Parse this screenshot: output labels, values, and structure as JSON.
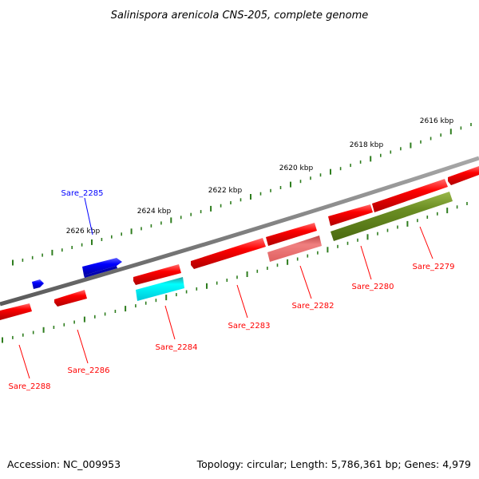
{
  "title": "Salinispora arenicola CNS-205, complete genome",
  "footer": {
    "accession": "Accession: NC_009953",
    "summary": "Topology: circular; Length: 5,786,361 bp; Genes: 4,979"
  },
  "scale_labels": [
    "2616 kbp",
    "2618 kbp",
    "2620 kbp",
    "2622 kbp",
    "2624 kbp",
    "2626 kbp"
  ],
  "colors": {
    "backbone": "#808080",
    "tick": "#2e7d1e",
    "cds_forward": "#ff0000",
    "cds_reverse": "#ff0000",
    "selected_cds": "#00ffff",
    "pseudo_cds": "#f08080",
    "rna": "#6b8e23",
    "highlight": "#0000ff"
  },
  "genes": [
    {
      "label": "Sare_2285",
      "color": "#0000ff",
      "label_color": "#0000ff"
    },
    {
      "label": "Sare_2279",
      "color": "#ff0000",
      "label_color": "#ff0000"
    },
    {
      "label": "Sare_2280",
      "color": "#ff0000",
      "label_color": "#ff0000"
    },
    {
      "label": "Sare_2282",
      "color": "#ff0000",
      "label_color": "#ff0000"
    },
    {
      "label": "Sare_2283",
      "color": "#ff0000",
      "label_color": "#ff0000"
    },
    {
      "label": "Sare_2284",
      "color": "#ff0000",
      "label_color": "#ff0000"
    },
    {
      "label": "Sare_2286",
      "color": "#ff0000",
      "label_color": "#ff0000"
    },
    {
      "label": "Sare_2288",
      "color": "#ff0000",
      "label_color": "#ff0000"
    }
  ]
}
